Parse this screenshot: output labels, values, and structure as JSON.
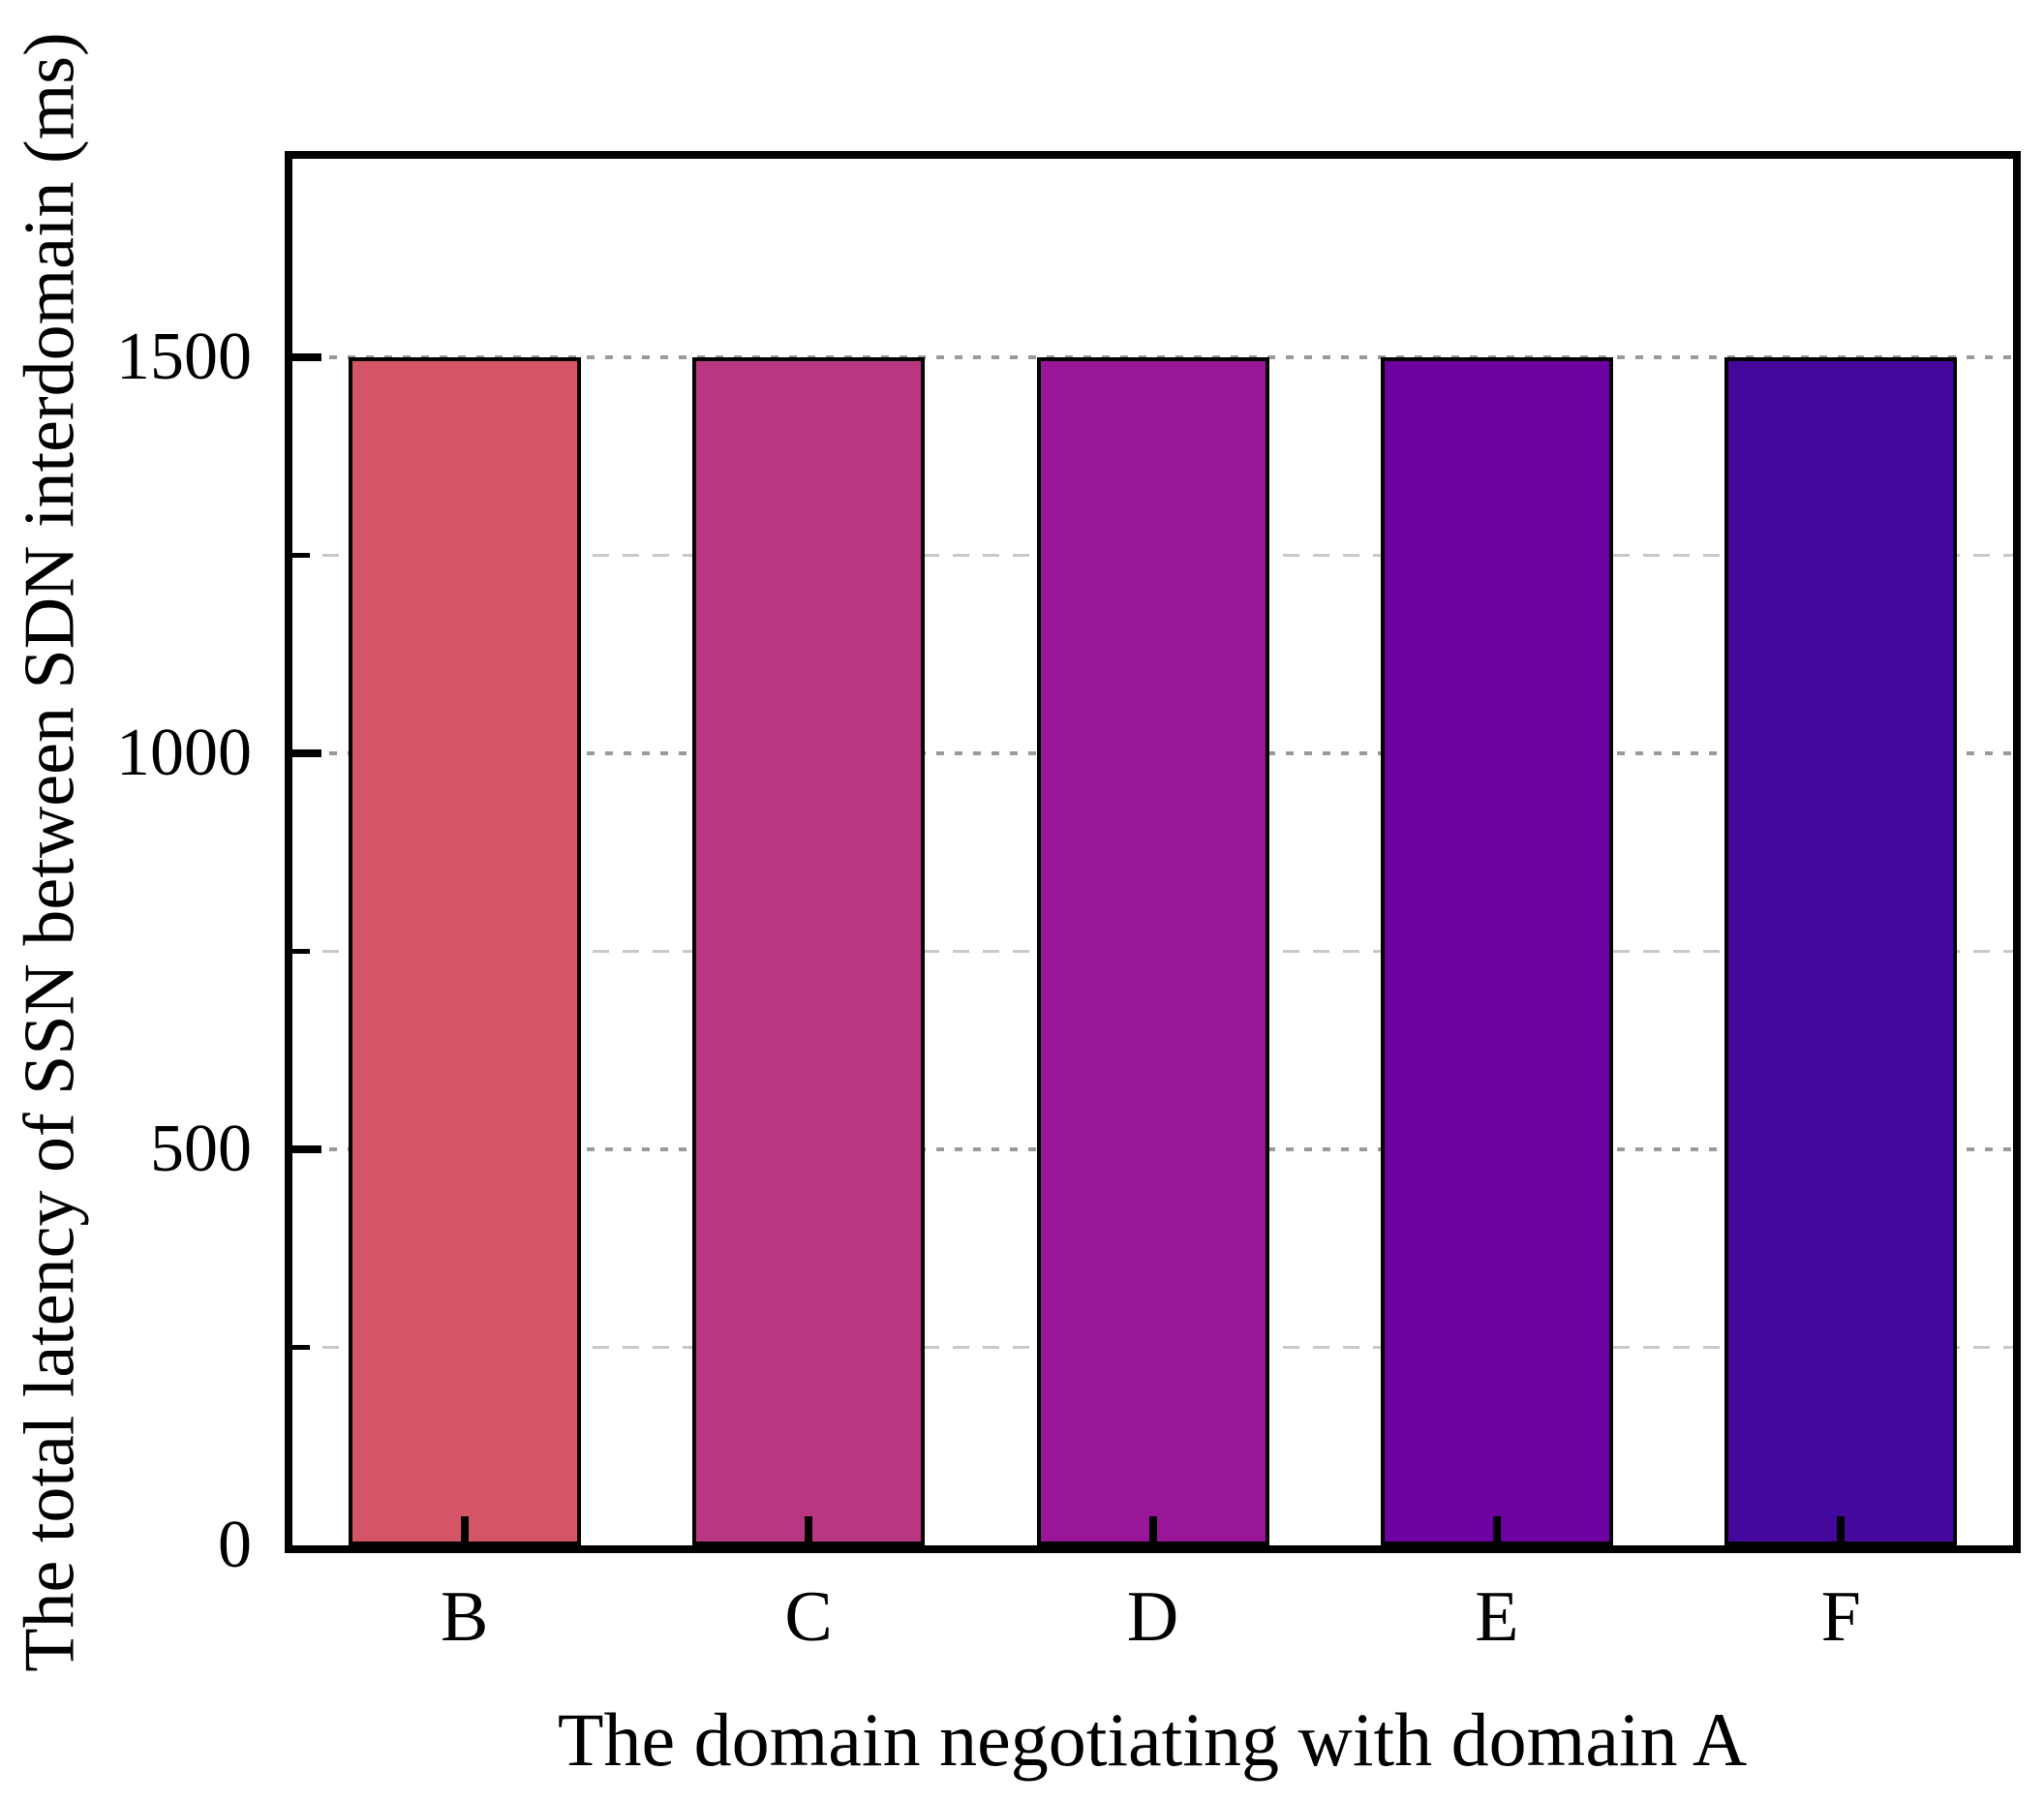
{
  "chart_data": {
    "type": "bar",
    "title": "",
    "categories": [
      "B",
      "C",
      "D",
      "E",
      "F"
    ],
    "values": [
      1500,
      1500,
      1500,
      1500,
      1500
    ],
    "bar_colors": [
      "#d45666",
      "#b93780",
      "#991699",
      "#6e02a0",
      "#44089c"
    ],
    "bar_edge_color": "#000000",
    "xlabel": "The domain negotiating with domain A",
    "ylabel": "The total latency of SSN between SDN interdomain (ms)",
    "ylim": [
      0,
      1750
    ],
    "yticks": [
      0,
      500,
      1000,
      1500
    ],
    "yticks_minor": [
      250,
      750,
      1250
    ],
    "grid": {
      "orientation": "horizontal",
      "major_style": "dashed",
      "minor_style": "dashed",
      "major_color": "#9a9a9a",
      "minor_color": "#c9c9c9"
    },
    "legend": "none",
    "frame_color": "#000000",
    "background": "#ffffff"
  }
}
